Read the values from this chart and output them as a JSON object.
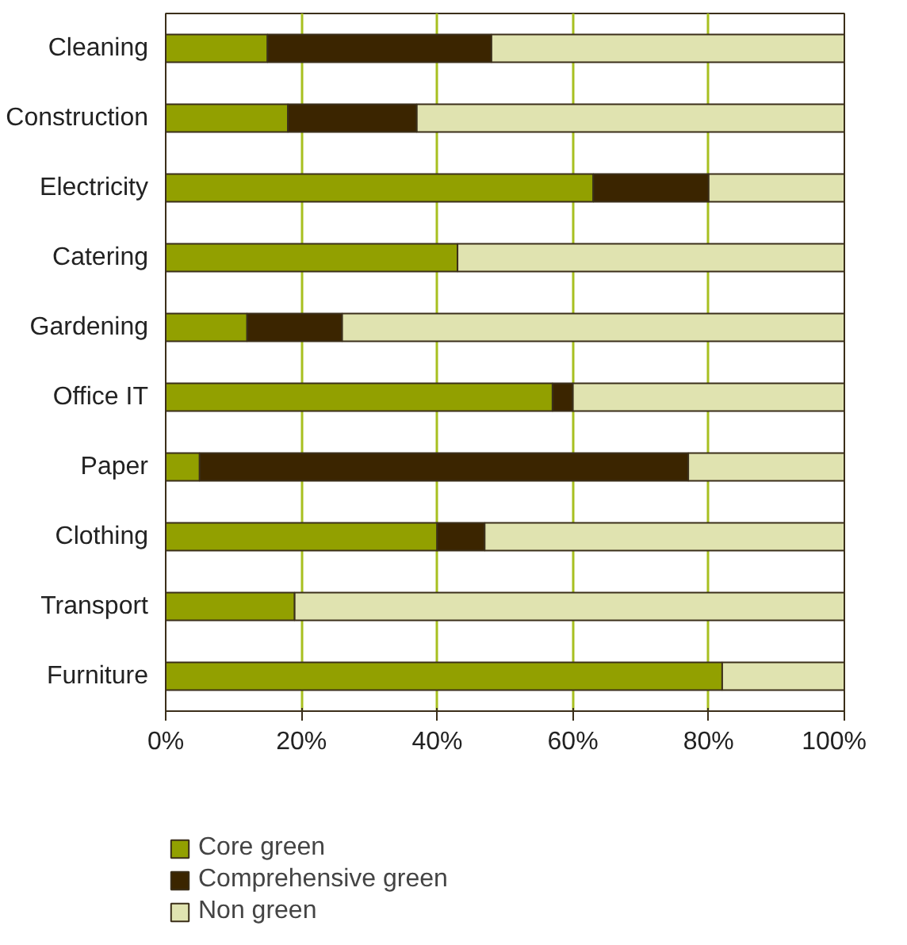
{
  "chart_data": {
    "type": "bar",
    "orientation": "horizontal",
    "stacked": true,
    "categories": [
      "Cleaning",
      "Construction",
      "Electricity",
      "Catering",
      "Gardening",
      "Office IT",
      "Paper",
      "Clothing",
      "Transport",
      "Furniture"
    ],
    "series": [
      {
        "name": "Core green",
        "color": "#92a000",
        "values": [
          15,
          18,
          63,
          43,
          12,
          57,
          5,
          40,
          19,
          82
        ]
      },
      {
        "name": "Comprehensive green",
        "color": "#3b2500",
        "values": [
          33,
          19,
          17,
          0,
          14,
          3,
          72,
          7,
          0,
          0
        ]
      },
      {
        "name": "Non green",
        "color": "#e0e3b0",
        "values": [
          52,
          63,
          20,
          57,
          74,
          40,
          23,
          53,
          81,
          18
        ]
      }
    ],
    "xlim": [
      0,
      100
    ],
    "xticks": [
      {
        "value": 0,
        "label": "0%"
      },
      {
        "value": 20,
        "label": "20%"
      },
      {
        "value": 40,
        "label": "40%"
      },
      {
        "value": 60,
        "label": "60%"
      },
      {
        "value": 80,
        "label": "80%"
      },
      {
        "value": 100,
        "label": "100%"
      }
    ],
    "grid": "x",
    "legend": "bottom"
  }
}
